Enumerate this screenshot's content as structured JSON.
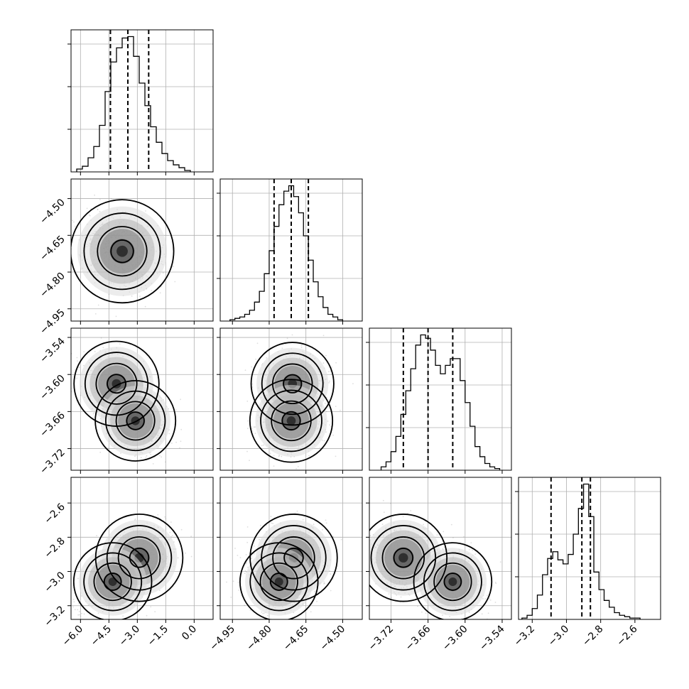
{
  "chart_data": {
    "type": "corner",
    "title": "",
    "parameters": [
      {
        "label": "",
        "range": [
          -6.5,
          1.0
        ],
        "ticks": [
          -6.0,
          -4.5,
          -3.0,
          -1.5,
          0.0
        ],
        "tick_labels": [
          "−6.0",
          "−4.5",
          "−3.0",
          "−1.5",
          "0.0"
        ],
        "quantiles": [
          -4.42,
          -3.5,
          -2.4
        ],
        "histogram": {
          "bin_edges": [
            -6.2,
            -5.9,
            -5.6,
            -5.3,
            -5.0,
            -4.7,
            -4.4,
            -4.1,
            -3.8,
            -3.5,
            -3.2,
            -2.9,
            -2.6,
            -2.3,
            -2.0,
            -1.7,
            -1.4,
            -1.1,
            -0.8,
            -0.5,
            -0.2
          ],
          "counts": [
            2,
            4,
            10,
            18,
            33,
            57,
            78,
            88,
            95,
            96,
            82,
            63,
            47,
            32,
            21,
            13,
            8,
            5,
            3,
            1
          ]
        }
      },
      {
        "label": "",
        "range": [
          -5.0,
          -4.42
        ],
        "ticks": [
          -4.95,
          -4.8,
          -4.65,
          -4.5
        ],
        "tick_labels": [
          "−4.95",
          "−4.80",
          "−4.65",
          "−4.50"
        ],
        "quantiles": [
          -4.78,
          -4.71,
          -4.64
        ],
        "histogram": {
          "bin_edges": [
            -4.96,
            -4.94,
            -4.92,
            -4.9,
            -4.88,
            -4.86,
            -4.84,
            -4.82,
            -4.8,
            -4.78,
            -4.76,
            -4.74,
            -4.72,
            -4.7,
            -4.68,
            -4.66,
            -4.64,
            -4.62,
            -4.6,
            -4.58,
            -4.56,
            -4.54,
            -4.52,
            -4.5
          ],
          "counts": [
            1,
            2,
            3,
            5,
            8,
            14,
            22,
            35,
            52,
            70,
            86,
            96,
            100,
            92,
            80,
            63,
            45,
            29,
            18,
            10,
            5,
            3,
            1
          ]
        }
      },
      {
        "label": "",
        "range": [
          -3.755,
          -3.525
        ],
        "ticks": [
          -3.72,
          -3.66,
          -3.6,
          -3.54
        ],
        "tick_labels": [
          "−3.72",
          "−3.66",
          "−3.60",
          "−3.54"
        ],
        "quantiles": [
          -3.7,
          -3.66,
          -3.62
        ],
        "histogram": {
          "bin_edges": [
            -3.736,
            -3.728,
            -3.72,
            -3.712,
            -3.704,
            -3.696,
            -3.688,
            -3.68,
            -3.672,
            -3.664,
            -3.656,
            -3.648,
            -3.64,
            -3.632,
            -3.624,
            -3.616,
            -3.608,
            -3.6,
            -3.592,
            -3.584,
            -3.576,
            -3.568,
            -3.56,
            -3.552,
            -3.544
          ],
          "counts": [
            2,
            5,
            11,
            20,
            33,
            47,
            60,
            74,
            80,
            78,
            71,
            62,
            57,
            62,
            66,
            66,
            53,
            40,
            26,
            14,
            8,
            4,
            2,
            1
          ]
        }
      },
      {
        "label": "",
        "range": [
          -3.28,
          -2.45
        ],
        "ticks": [
          -3.2,
          -3.0,
          -2.8,
          -2.6
        ],
        "tick_labels": [
          "−3.2",
          "−3.0",
          "−2.8",
          "−2.6"
        ],
        "quantiles": [
          -3.09,
          -2.91,
          -2.86
        ],
        "histogram": {
          "bin_edges": [
            -3.26,
            -3.23,
            -3.2,
            -3.17,
            -3.14,
            -3.11,
            -3.08,
            -3.05,
            -3.02,
            -2.99,
            -2.96,
            -2.93,
            -2.9,
            -2.87,
            -2.84,
            -2.81,
            -2.78,
            -2.75,
            -2.72,
            -2.69,
            -2.66,
            -2.63,
            -2.6,
            -2.57
          ],
          "counts": [
            1,
            3,
            8,
            18,
            33,
            45,
            50,
            44,
            41,
            48,
            63,
            82,
            100,
            76,
            35,
            22,
            14,
            9,
            5,
            3,
            2,
            1,
            1
          ]
        }
      }
    ],
    "pair_densities": [
      {
        "row": 1,
        "col": 0,
        "modes": [
          {
            "x": -3.8,
            "y": -4.715,
            "weight": 1.0
          }
        ],
        "rho": -0.25
      },
      {
        "row": 2,
        "col": 0,
        "modes": [
          {
            "x": -4.1,
            "y": -3.615,
            "weight": 0.55
          },
          {
            "x": -3.1,
            "y": -3.675,
            "weight": 0.45
          }
        ],
        "rho": -0.3
      },
      {
        "row": 2,
        "col": 1,
        "modes": [
          {
            "x": -4.705,
            "y": -3.615,
            "weight": 0.5
          },
          {
            "x": -4.71,
            "y": -3.675,
            "weight": 0.5
          }
        ],
        "rho": 0.0
      },
      {
        "row": 3,
        "col": 0,
        "modes": [
          {
            "x": -2.9,
            "y": -2.92,
            "weight": 0.6
          },
          {
            "x": -4.3,
            "y": -3.06,
            "weight": 0.4
          }
        ],
        "rho": 0.3
      },
      {
        "row": 3,
        "col": 1,
        "modes": [
          {
            "x": -4.7,
            "y": -2.92,
            "weight": 0.6
          },
          {
            "x": -4.76,
            "y": -3.06,
            "weight": 0.4
          }
        ],
        "rho": 0.0
      },
      {
        "row": 3,
        "col": 2,
        "modes": [
          {
            "x": -3.7,
            "y": -2.92,
            "weight": 0.6
          },
          {
            "x": -3.62,
            "y": -3.06,
            "weight": 0.4
          }
        ],
        "rho": 0.0
      }
    ]
  }
}
